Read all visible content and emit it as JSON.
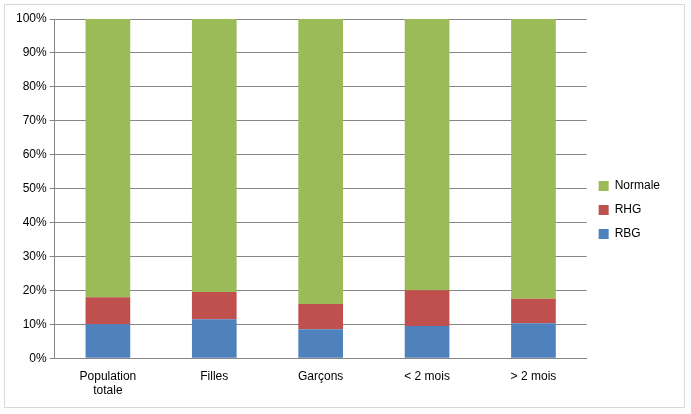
{
  "chart_data": {
    "type": "bar",
    "categories": [
      "Population totale",
      "Filles",
      "Garçons",
      "< 2 mois",
      "> 2 mois"
    ],
    "series": [
      {
        "name": "RBG",
        "color": "#4f81bd",
        "values": [
          10,
          11.5,
          8.5,
          9.5,
          10.3
        ]
      },
      {
        "name": "RHG",
        "color": "#c0504d",
        "values": [
          8,
          8,
          7.5,
          10.5,
          7.2
        ]
      },
      {
        "name": "Normale",
        "color": "#9bbb59",
        "values": [
          82,
          80.5,
          84,
          80,
          82.5
        ]
      }
    ],
    "stacked": true,
    "ylim": [
      0,
      100
    ],
    "yticks": [
      {
        "value": 0,
        "label": "0%"
      },
      {
        "value": 10,
        "label": "10%"
      },
      {
        "value": 20,
        "label": "20%"
      },
      {
        "value": 30,
        "label": "30%"
      },
      {
        "value": 40,
        "label": "40%"
      },
      {
        "value": 50,
        "label": "50%"
      },
      {
        "value": 60,
        "label": "60%"
      },
      {
        "value": 70,
        "label": "70%"
      },
      {
        "value": 80,
        "label": "80%"
      },
      {
        "value": 90,
        "label": "90%"
      },
      {
        "value": 100,
        "label": "100%"
      }
    ],
    "grid": true,
    "legend": "right"
  }
}
